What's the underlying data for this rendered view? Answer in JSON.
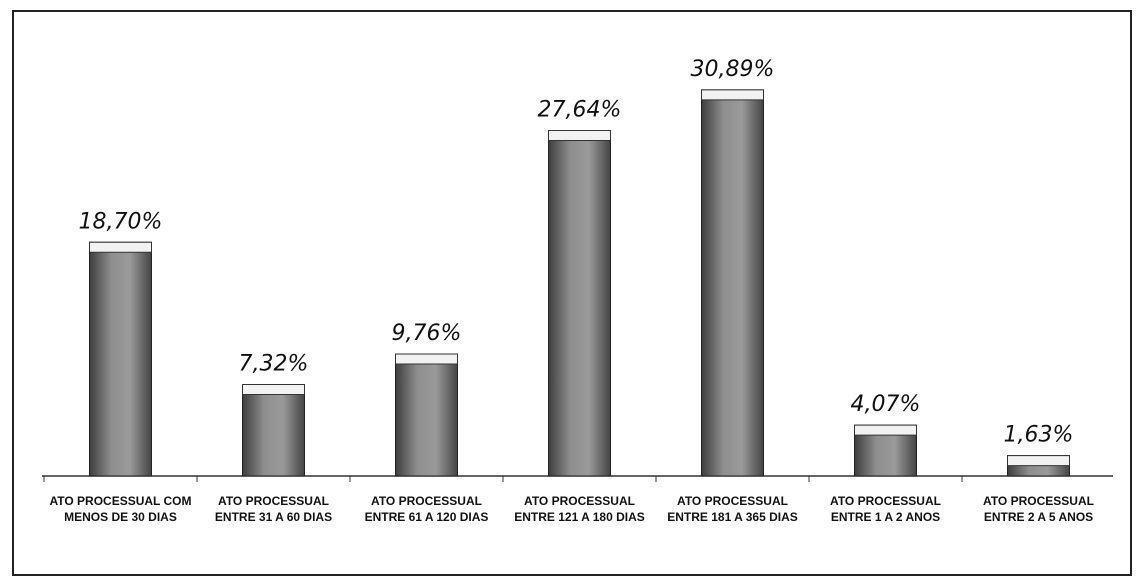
{
  "chart_data": {
    "type": "bar",
    "categories": [
      "ATO PROCESSUAL COM MENOS DE 30 DIAS",
      "ATO PROCESSUAL ENTRE 31 A 60 DIAS",
      "ATO PROCESSUAL ENTRE 61 A 120 DIAS",
      "ATO PROCESSUAL ENTRE 121 A 180 DIAS",
      "ATO PROCESSUAL ENTRE 181 A 365 DIAS",
      "ATO PROCESSUAL ENTRE 1 A 2 ANOS",
      "ATO PROCESSUAL ENTRE 2 A 5 ANOS"
    ],
    "values": [
      18.7,
      7.32,
      9.76,
      27.64,
      30.89,
      4.07,
      1.63
    ],
    "value_labels": [
      "18,70%",
      "7,32%",
      "9,76%",
      "27,64%",
      "30,89%",
      "4,07%",
      "1,63%"
    ],
    "color": "#7a7a7a"
  }
}
